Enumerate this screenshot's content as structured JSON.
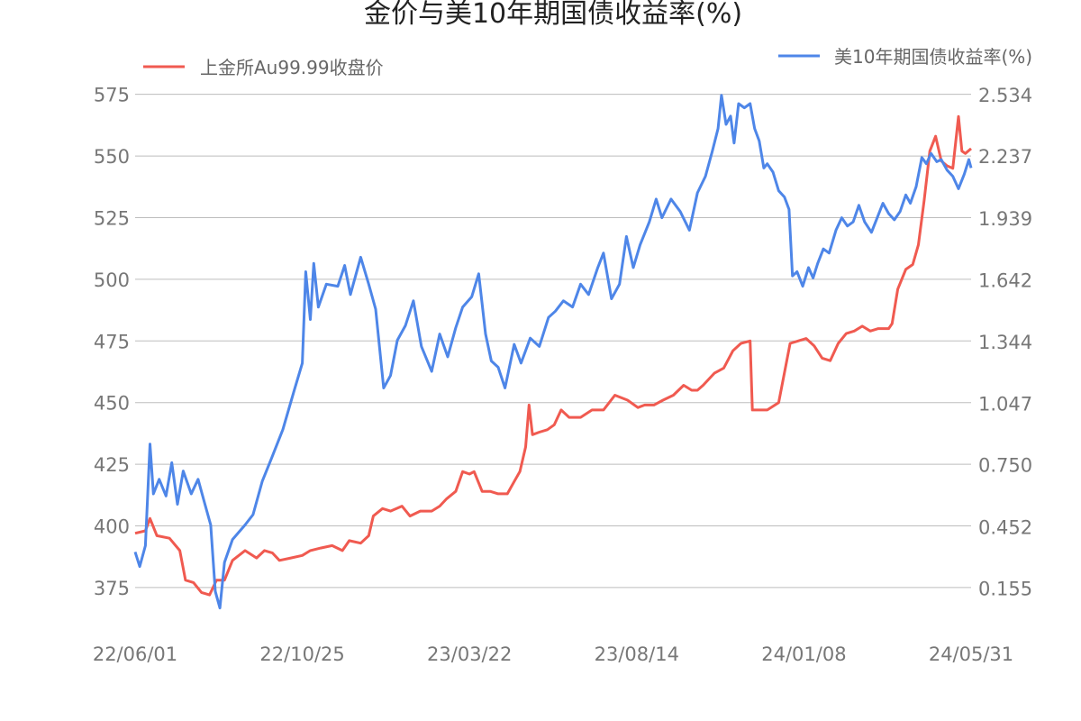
{
  "chart_data": {
    "type": "line",
    "title": "金价与美10年期国债收益率(%)",
    "x_tick_labels": [
      "22/06/01",
      "22/10/25",
      "23/03/22",
      "23/08/14",
      "24/01/08",
      "24/05/31"
    ],
    "x_range": [
      "2022-06-01",
      "2024-05-31"
    ],
    "y_left": {
      "range": [
        364,
        580
      ],
      "ticks": [
        "575",
        "550",
        "525",
        "500",
        "475",
        "450",
        "425",
        "400",
        "375"
      ],
      "tick_values": [
        575,
        550,
        525,
        500,
        475,
        450,
        425,
        400,
        375
      ]
    },
    "y_right": {
      "range": [
        0.028,
        2.594
      ],
      "ticks": [
        "2.534",
        "2.237",
        "1.939",
        "1.642",
        "1.344",
        "1.047",
        "0.750",
        "0.452",
        "0.155"
      ],
      "tick_values": [
        2.534,
        2.237,
        1.939,
        1.642,
        1.344,
        1.047,
        0.75,
        0.452,
        0.155
      ]
    },
    "grid": true,
    "series": [
      {
        "name": "上金所Au99.99收盘价",
        "axis": "left",
        "color": "#f05a50",
        "legend_position": "top-left",
        "points": [
          [
            "2022-06-01",
            397
          ],
          [
            "2022-06-10",
            398
          ],
          [
            "2022-06-14",
            403
          ],
          [
            "2022-06-20",
            396
          ],
          [
            "2022-07-01",
            395
          ],
          [
            "2022-07-10",
            390
          ],
          [
            "2022-07-15",
            378
          ],
          [
            "2022-07-22",
            377
          ],
          [
            "2022-07-29",
            373
          ],
          [
            "2022-08-05",
            372
          ],
          [
            "2022-08-11",
            378
          ],
          [
            "2022-08-18",
            378
          ],
          [
            "2022-08-25",
            386
          ],
          [
            "2022-09-05",
            390
          ],
          [
            "2022-09-15",
            387
          ],
          [
            "2022-09-22",
            390
          ],
          [
            "2022-09-29",
            389
          ],
          [
            "2022-10-05",
            386
          ],
          [
            "2022-10-15",
            387
          ],
          [
            "2022-10-25",
            388
          ],
          [
            "2022-11-01",
            390
          ],
          [
            "2022-11-10",
            391
          ],
          [
            "2022-11-20",
            392
          ],
          [
            "2022-11-29",
            390
          ],
          [
            "2022-12-05",
            394
          ],
          [
            "2022-12-15",
            393
          ],
          [
            "2022-12-22",
            396
          ],
          [
            "2022-12-26",
            404
          ],
          [
            "2023-01-03",
            407
          ],
          [
            "2023-01-10",
            406
          ],
          [
            "2023-01-20",
            408
          ],
          [
            "2023-01-27",
            404
          ],
          [
            "2023-02-05",
            406
          ],
          [
            "2023-02-15",
            406
          ],
          [
            "2023-02-22",
            408
          ],
          [
            "2023-02-28",
            411
          ],
          [
            "2023-03-08",
            414
          ],
          [
            "2023-03-14",
            422
          ],
          [
            "2023-03-20",
            421
          ],
          [
            "2023-03-24",
            422
          ],
          [
            "2023-03-31",
            414
          ],
          [
            "2023-04-07",
            414
          ],
          [
            "2023-04-14",
            413
          ],
          [
            "2023-04-22",
            413
          ],
          [
            "2023-04-28",
            418
          ],
          [
            "2023-05-03",
            422
          ],
          [
            "2023-05-08",
            432
          ],
          [
            "2023-05-11",
            449
          ],
          [
            "2023-05-14",
            437
          ],
          [
            "2023-05-20",
            438
          ],
          [
            "2023-05-27",
            439
          ],
          [
            "2023-06-02",
            441
          ],
          [
            "2023-06-08",
            447
          ],
          [
            "2023-06-15",
            444
          ],
          [
            "2023-06-25",
            444
          ],
          [
            "2023-07-05",
            447
          ],
          [
            "2023-07-15",
            447
          ],
          [
            "2023-07-25",
            453
          ],
          [
            "2023-08-05",
            451
          ],
          [
            "2023-08-14",
            448
          ],
          [
            "2023-08-20",
            449
          ],
          [
            "2023-08-28",
            449
          ],
          [
            "2023-09-05",
            451
          ],
          [
            "2023-09-14",
            453
          ],
          [
            "2023-09-23",
            457
          ],
          [
            "2023-09-30",
            455
          ],
          [
            "2023-10-05",
            455
          ],
          [
            "2023-10-10",
            457
          ],
          [
            "2023-10-20",
            462
          ],
          [
            "2023-10-28",
            464
          ],
          [
            "2023-11-05",
            471
          ],
          [
            "2023-11-12",
            474
          ],
          [
            "2023-11-20",
            475
          ],
          [
            "2023-11-22",
            447
          ],
          [
            "2023-12-05",
            447
          ],
          [
            "2023-12-15",
            450
          ],
          [
            "2023-12-25",
            474
          ],
          [
            "2024-01-01",
            475
          ],
          [
            "2024-01-08",
            476
          ],
          [
            "2024-01-15",
            473
          ],
          [
            "2024-01-22",
            468
          ],
          [
            "2024-01-29",
            467
          ],
          [
            "2024-02-05",
            474
          ],
          [
            "2024-02-12",
            478
          ],
          [
            "2024-02-19",
            479
          ],
          [
            "2024-02-26",
            481
          ],
          [
            "2024-03-04",
            479
          ],
          [
            "2024-03-11",
            480
          ],
          [
            "2024-03-20",
            480
          ],
          [
            "2024-03-23",
            482
          ],
          [
            "2024-03-28",
            496
          ],
          [
            "2024-04-04",
            504
          ],
          [
            "2024-04-10",
            506
          ],
          [
            "2024-04-15",
            514
          ],
          [
            "2024-04-20",
            532
          ],
          [
            "2024-04-25",
            552
          ],
          [
            "2024-04-30",
            558
          ],
          [
            "2024-05-05",
            548
          ],
          [
            "2024-05-10",
            546
          ],
          [
            "2024-05-15",
            545
          ],
          [
            "2024-05-20",
            566
          ],
          [
            "2024-05-23",
            552
          ],
          [
            "2024-05-26",
            551
          ],
          [
            "2024-05-31",
            553
          ]
        ]
      },
      {
        "name": "美10年期国债收益率(%)",
        "axis": "right",
        "color": "#4e86e8",
        "legend_position": "top-right",
        "points": [
          [
            "2022-06-01",
            0.33
          ],
          [
            "2022-06-05",
            0.26
          ],
          [
            "2022-06-10",
            0.36
          ],
          [
            "2022-06-14",
            0.85
          ],
          [
            "2022-06-17",
            0.61
          ],
          [
            "2022-06-22",
            0.68
          ],
          [
            "2022-06-28",
            0.6
          ],
          [
            "2022-07-03",
            0.76
          ],
          [
            "2022-07-08",
            0.56
          ],
          [
            "2022-07-13",
            0.72
          ],
          [
            "2022-07-20",
            0.61
          ],
          [
            "2022-07-26",
            0.68
          ],
          [
            "2022-08-01",
            0.56
          ],
          [
            "2022-08-06",
            0.46
          ],
          [
            "2022-08-10",
            0.14
          ],
          [
            "2022-08-14",
            0.06
          ],
          [
            "2022-08-18",
            0.28
          ],
          [
            "2022-08-25",
            0.39
          ],
          [
            "2022-09-05",
            0.46
          ],
          [
            "2022-09-12",
            0.51
          ],
          [
            "2022-09-20",
            0.67
          ],
          [
            "2022-09-28",
            0.78
          ],
          [
            "2022-10-08",
            0.92
          ],
          [
            "2022-10-18",
            1.11
          ],
          [
            "2022-10-25",
            1.24
          ],
          [
            "2022-10-28",
            1.68
          ],
          [
            "2022-11-01",
            1.45
          ],
          [
            "2022-11-04",
            1.72
          ],
          [
            "2022-11-08",
            1.51
          ],
          [
            "2022-11-15",
            1.62
          ],
          [
            "2022-11-25",
            1.61
          ],
          [
            "2022-12-01",
            1.71
          ],
          [
            "2022-12-06",
            1.57
          ],
          [
            "2022-12-15",
            1.75
          ],
          [
            "2022-12-22",
            1.62
          ],
          [
            "2022-12-28",
            1.5
          ],
          [
            "2023-01-04",
            1.12
          ],
          [
            "2023-01-10",
            1.18
          ],
          [
            "2023-01-16",
            1.35
          ],
          [
            "2023-01-23",
            1.42
          ],
          [
            "2023-01-30",
            1.54
          ],
          [
            "2023-02-06",
            1.32
          ],
          [
            "2023-02-15",
            1.2
          ],
          [
            "2023-02-22",
            1.38
          ],
          [
            "2023-03-01",
            1.27
          ],
          [
            "2023-03-08",
            1.41
          ],
          [
            "2023-03-14",
            1.51
          ],
          [
            "2023-03-22",
            1.56
          ],
          [
            "2023-03-28",
            1.67
          ],
          [
            "2023-04-03",
            1.38
          ],
          [
            "2023-04-08",
            1.25
          ],
          [
            "2023-04-14",
            1.22
          ],
          [
            "2023-04-20",
            1.12
          ],
          [
            "2023-04-28",
            1.33
          ],
          [
            "2023-05-04",
            1.24
          ],
          [
            "2023-05-12",
            1.36
          ],
          [
            "2023-05-20",
            1.32
          ],
          [
            "2023-05-28",
            1.46
          ],
          [
            "2023-06-03",
            1.49
          ],
          [
            "2023-06-10",
            1.54
          ],
          [
            "2023-06-18",
            1.51
          ],
          [
            "2023-06-25",
            1.62
          ],
          [
            "2023-07-02",
            1.57
          ],
          [
            "2023-07-10",
            1.7
          ],
          [
            "2023-07-15",
            1.77
          ],
          [
            "2023-07-22",
            1.55
          ],
          [
            "2023-07-29",
            1.62
          ],
          [
            "2023-08-04",
            1.85
          ],
          [
            "2023-08-10",
            1.7
          ],
          [
            "2023-08-16",
            1.81
          ],
          [
            "2023-08-24",
            1.92
          ],
          [
            "2023-08-30",
            2.03
          ],
          [
            "2023-09-04",
            1.94
          ],
          [
            "2023-09-12",
            2.03
          ],
          [
            "2023-09-20",
            1.97
          ],
          [
            "2023-09-28",
            1.88
          ],
          [
            "2023-10-05",
            2.06
          ],
          [
            "2023-10-12",
            2.14
          ],
          [
            "2023-10-18",
            2.26
          ],
          [
            "2023-10-23",
            2.37
          ],
          [
            "2023-10-26",
            2.53
          ],
          [
            "2023-10-30",
            2.39
          ],
          [
            "2023-11-03",
            2.43
          ],
          [
            "2023-11-06",
            2.3
          ],
          [
            "2023-11-10",
            2.49
          ],
          [
            "2023-11-15",
            2.47
          ],
          [
            "2023-11-20",
            2.49
          ],
          [
            "2023-11-24",
            2.37
          ],
          [
            "2023-11-28",
            2.31
          ],
          [
            "2023-12-02",
            2.18
          ],
          [
            "2023-12-05",
            2.2
          ],
          [
            "2023-12-10",
            2.16
          ],
          [
            "2023-12-15",
            2.07
          ],
          [
            "2023-12-20",
            2.04
          ],
          [
            "2023-12-24",
            1.98
          ],
          [
            "2023-12-27",
            1.66
          ],
          [
            "2023-12-31",
            1.68
          ],
          [
            "2024-01-05",
            1.61
          ],
          [
            "2024-01-10",
            1.7
          ],
          [
            "2024-01-14",
            1.65
          ],
          [
            "2024-01-18",
            1.72
          ],
          [
            "2024-01-23",
            1.79
          ],
          [
            "2024-01-28",
            1.77
          ],
          [
            "2024-02-03",
            1.88
          ],
          [
            "2024-02-08",
            1.94
          ],
          [
            "2024-02-13",
            1.9
          ],
          [
            "2024-02-18",
            1.92
          ],
          [
            "2024-02-23",
            2.0
          ],
          [
            "2024-02-28",
            1.92
          ],
          [
            "2024-03-05",
            1.87
          ],
          [
            "2024-03-10",
            1.94
          ],
          [
            "2024-03-15",
            2.01
          ],
          [
            "2024-03-20",
            1.96
          ],
          [
            "2024-03-25",
            1.93
          ],
          [
            "2024-03-30",
            1.97
          ],
          [
            "2024-04-04",
            2.05
          ],
          [
            "2024-04-08",
            2.01
          ],
          [
            "2024-04-13",
            2.09
          ],
          [
            "2024-04-18",
            2.23
          ],
          [
            "2024-04-22",
            2.2
          ],
          [
            "2024-04-26",
            2.25
          ],
          [
            "2024-05-01",
            2.21
          ],
          [
            "2024-05-05",
            2.22
          ],
          [
            "2024-05-10",
            2.17
          ],
          [
            "2024-05-15",
            2.14
          ],
          [
            "2024-05-20",
            2.08
          ],
          [
            "2024-05-25",
            2.15
          ],
          [
            "2024-05-29",
            2.22
          ],
          [
            "2024-05-31",
            2.18
          ]
        ]
      }
    ]
  }
}
